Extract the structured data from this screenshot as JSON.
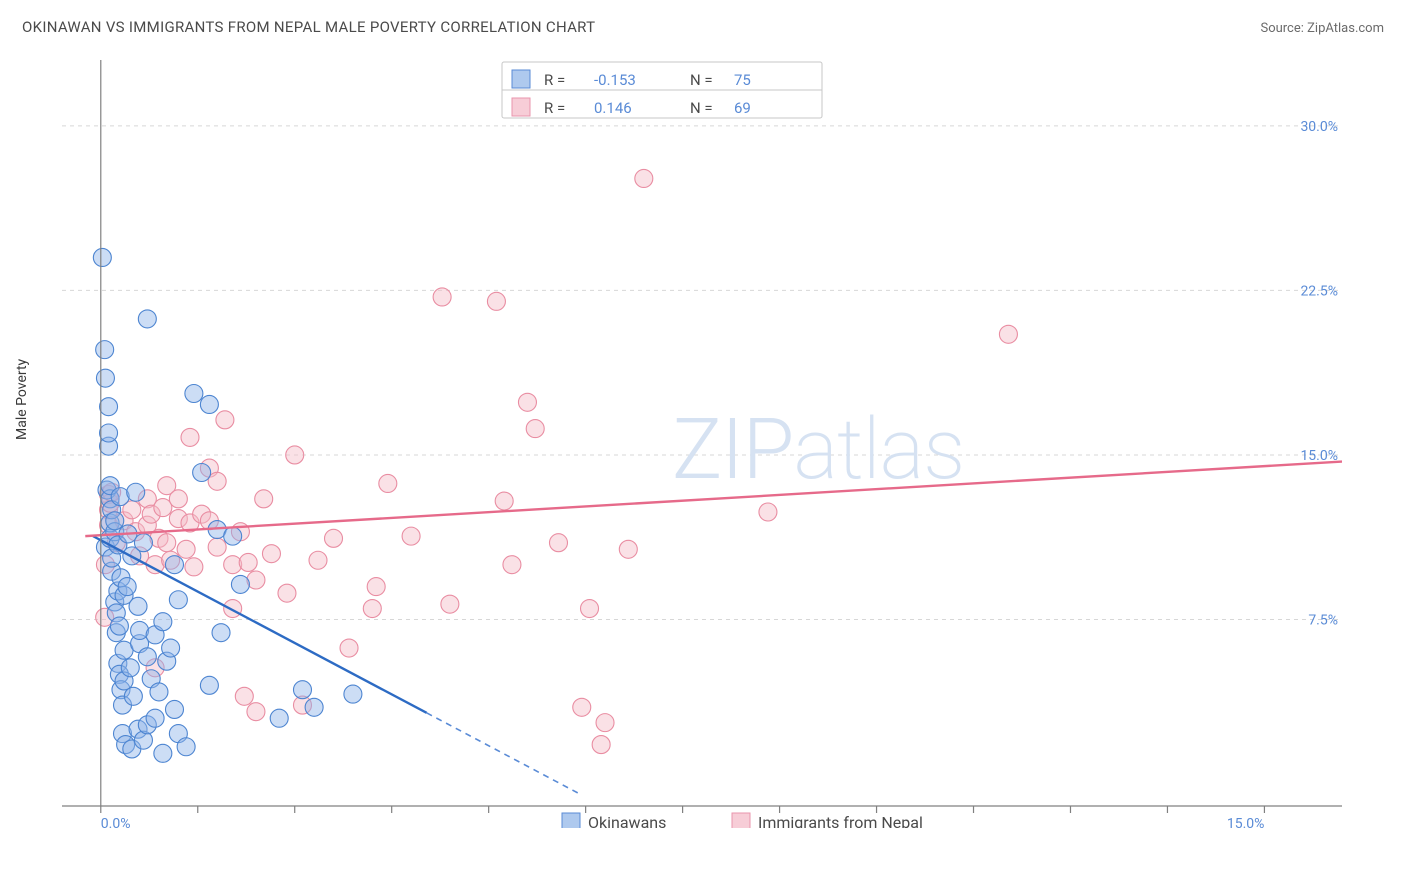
{
  "title": "OKINAWAN VS IMMIGRANTS FROM NEPAL MALE POVERTY CORRELATION CHART",
  "source_label": "Source: ZipAtlas.com",
  "y_axis_label": "Male Poverty",
  "watermark_a": "ZIP",
  "watermark_b": "atlas",
  "chart": {
    "type": "scatter",
    "background_color": "#ffffff",
    "grid_color": "#d7d7d7",
    "axis_color": "#808080",
    "tick_label_color": "#5a8bd6",
    "marker_radius": 9,
    "xlim": [
      -0.5,
      16.0
    ],
    "ylim": [
      -1.0,
      33.0
    ],
    "x_ticks": [
      0.0,
      1.25,
      2.5,
      3.75,
      5.0,
      6.25,
      7.5,
      8.75,
      10.0,
      11.25,
      12.5,
      13.75,
      15.0
    ],
    "x_tick_labels_visible": {
      "0": "0.0%",
      "12": "15.0%"
    },
    "y_ticks": [
      7.5,
      15.0,
      22.5,
      30.0
    ],
    "y_tick_labels": [
      "7.5%",
      "15.0%",
      "22.5%",
      "30.0%"
    ],
    "stats_box": {
      "border_color": "#c7c7c7",
      "rows": [
        {
          "swatch": "blue",
          "r_label": "R =",
          "r_value": "-0.153",
          "n_label": "N =",
          "n_value": "75"
        },
        {
          "swatch": "pink",
          "r_label": "R =",
          "r_value": "0.146",
          "n_label": "N =",
          "n_value": "69"
        }
      ]
    },
    "series": [
      {
        "id": "okinawans",
        "label": "Okinawans",
        "marker_fill": "#8db4e8",
        "marker_stroke": "#4d85d1",
        "marker_opacity": 0.45,
        "trend_color": "#2d6bc4",
        "trend_solid_until_x": 4.2,
        "trend_start": [
          -0.1,
          11.3
        ],
        "trend_end": [
          6.2,
          -0.5
        ],
        "points": [
          [
            0.02,
            24.0
          ],
          [
            0.05,
            19.8
          ],
          [
            0.06,
            18.5
          ],
          [
            0.06,
            10.8
          ],
          [
            0.08,
            13.4
          ],
          [
            0.1,
            15.4
          ],
          [
            0.1,
            16.0
          ],
          [
            0.1,
            17.2
          ],
          [
            0.12,
            11.2
          ],
          [
            0.12,
            11.9
          ],
          [
            0.12,
            13.0
          ],
          [
            0.12,
            13.6
          ],
          [
            0.14,
            9.7
          ],
          [
            0.14,
            10.3
          ],
          [
            0.14,
            12.5
          ],
          [
            0.18,
            8.3
          ],
          [
            0.18,
            11.5
          ],
          [
            0.18,
            12.0
          ],
          [
            0.2,
            6.9
          ],
          [
            0.2,
            7.8
          ],
          [
            0.22,
            5.5
          ],
          [
            0.22,
            8.8
          ],
          [
            0.22,
            10.9
          ],
          [
            0.24,
            5.0
          ],
          [
            0.24,
            7.2
          ],
          [
            0.25,
            13.1
          ],
          [
            0.26,
            4.3
          ],
          [
            0.26,
            9.4
          ],
          [
            0.28,
            2.3
          ],
          [
            0.28,
            3.6
          ],
          [
            0.3,
            4.7
          ],
          [
            0.3,
            6.1
          ],
          [
            0.3,
            8.6
          ],
          [
            0.32,
            1.8
          ],
          [
            0.34,
            9.0
          ],
          [
            0.35,
            11.4
          ],
          [
            0.38,
            5.3
          ],
          [
            0.4,
            1.6
          ],
          [
            0.4,
            10.4
          ],
          [
            0.42,
            4.0
          ],
          [
            0.45,
            13.3
          ],
          [
            0.48,
            2.5
          ],
          [
            0.48,
            8.1
          ],
          [
            0.5,
            6.4
          ],
          [
            0.5,
            7.0
          ],
          [
            0.55,
            2.0
          ],
          [
            0.55,
            11.0
          ],
          [
            0.6,
            21.2
          ],
          [
            0.6,
            2.7
          ],
          [
            0.6,
            5.8
          ],
          [
            0.65,
            4.8
          ],
          [
            0.7,
            3.0
          ],
          [
            0.7,
            6.8
          ],
          [
            0.75,
            4.2
          ],
          [
            0.8,
            1.4
          ],
          [
            0.8,
            7.4
          ],
          [
            0.85,
            5.6
          ],
          [
            0.9,
            6.2
          ],
          [
            0.95,
            3.4
          ],
          [
            0.95,
            10.0
          ],
          [
            1.0,
            2.3
          ],
          [
            1.0,
            8.4
          ],
          [
            1.1,
            1.7
          ],
          [
            1.2,
            17.8
          ],
          [
            1.3,
            14.2
          ],
          [
            1.4,
            4.5
          ],
          [
            1.4,
            17.3
          ],
          [
            1.5,
            11.6
          ],
          [
            1.55,
            6.9
          ],
          [
            1.7,
            11.3
          ],
          [
            1.8,
            9.1
          ],
          [
            2.3,
            3.0
          ],
          [
            2.6,
            4.3
          ],
          [
            2.75,
            3.5
          ],
          [
            3.25,
            4.1
          ]
        ]
      },
      {
        "id": "nepal",
        "label": "Immigrants from Nepal",
        "marker_fill": "#f5bcc8",
        "marker_stroke": "#e98da2",
        "marker_opacity": 0.45,
        "trend_color": "#e66a8a",
        "trend_start": [
          -0.2,
          11.3
        ],
        "trend_end": [
          16.0,
          14.7
        ],
        "points": [
          [
            0.05,
            7.6
          ],
          [
            0.06,
            10.0
          ],
          [
            0.1,
            11.8
          ],
          [
            0.1,
            12.5
          ],
          [
            0.1,
            13.2
          ],
          [
            0.12,
            12.8
          ],
          [
            0.14,
            13.3
          ],
          [
            0.2,
            11.0
          ],
          [
            0.3,
            12.0
          ],
          [
            0.4,
            12.5
          ],
          [
            0.45,
            11.5
          ],
          [
            0.5,
            10.4
          ],
          [
            0.6,
            11.8
          ],
          [
            0.6,
            13.0
          ],
          [
            0.65,
            12.3
          ],
          [
            0.7,
            5.3
          ],
          [
            0.7,
            10.0
          ],
          [
            0.75,
            11.2
          ],
          [
            0.8,
            12.6
          ],
          [
            0.85,
            11.0
          ],
          [
            0.85,
            13.6
          ],
          [
            0.9,
            10.2
          ],
          [
            1.0,
            12.1
          ],
          [
            1.0,
            13.0
          ],
          [
            1.1,
            10.7
          ],
          [
            1.15,
            11.9
          ],
          [
            1.15,
            15.8
          ],
          [
            1.2,
            9.9
          ],
          [
            1.3,
            12.3
          ],
          [
            1.4,
            14.4
          ],
          [
            1.4,
            12.0
          ],
          [
            1.5,
            10.8
          ],
          [
            1.5,
            13.8
          ],
          [
            1.6,
            16.6
          ],
          [
            1.7,
            8.0
          ],
          [
            1.7,
            10.0
          ],
          [
            1.8,
            11.5
          ],
          [
            1.85,
            4.0
          ],
          [
            1.9,
            10.1
          ],
          [
            2.0,
            3.3
          ],
          [
            2.0,
            9.3
          ],
          [
            2.1,
            13.0
          ],
          [
            2.2,
            10.5
          ],
          [
            2.4,
            8.7
          ],
          [
            2.5,
            15.0
          ],
          [
            2.6,
            3.6
          ],
          [
            2.8,
            10.2
          ],
          [
            3.0,
            11.2
          ],
          [
            3.2,
            6.2
          ],
          [
            3.5,
            8.0
          ],
          [
            3.55,
            9.0
          ],
          [
            3.7,
            13.7
          ],
          [
            4.0,
            11.3
          ],
          [
            4.4,
            22.2
          ],
          [
            4.5,
            8.2
          ],
          [
            5.1,
            22.0
          ],
          [
            5.2,
            12.9
          ],
          [
            5.3,
            10.0
          ],
          [
            5.5,
            17.4
          ],
          [
            5.6,
            16.2
          ],
          [
            5.9,
            11.0
          ],
          [
            6.2,
            3.5
          ],
          [
            6.3,
            8.0
          ],
          [
            6.45,
            1.8
          ],
          [
            6.5,
            2.8
          ],
          [
            6.8,
            10.7
          ],
          [
            7.0,
            27.6
          ],
          [
            8.6,
            12.4
          ],
          [
            11.7,
            20.5
          ]
        ]
      }
    ]
  },
  "legend": {
    "series_a": "Okinawans",
    "series_b": "Immigrants from Nepal"
  }
}
